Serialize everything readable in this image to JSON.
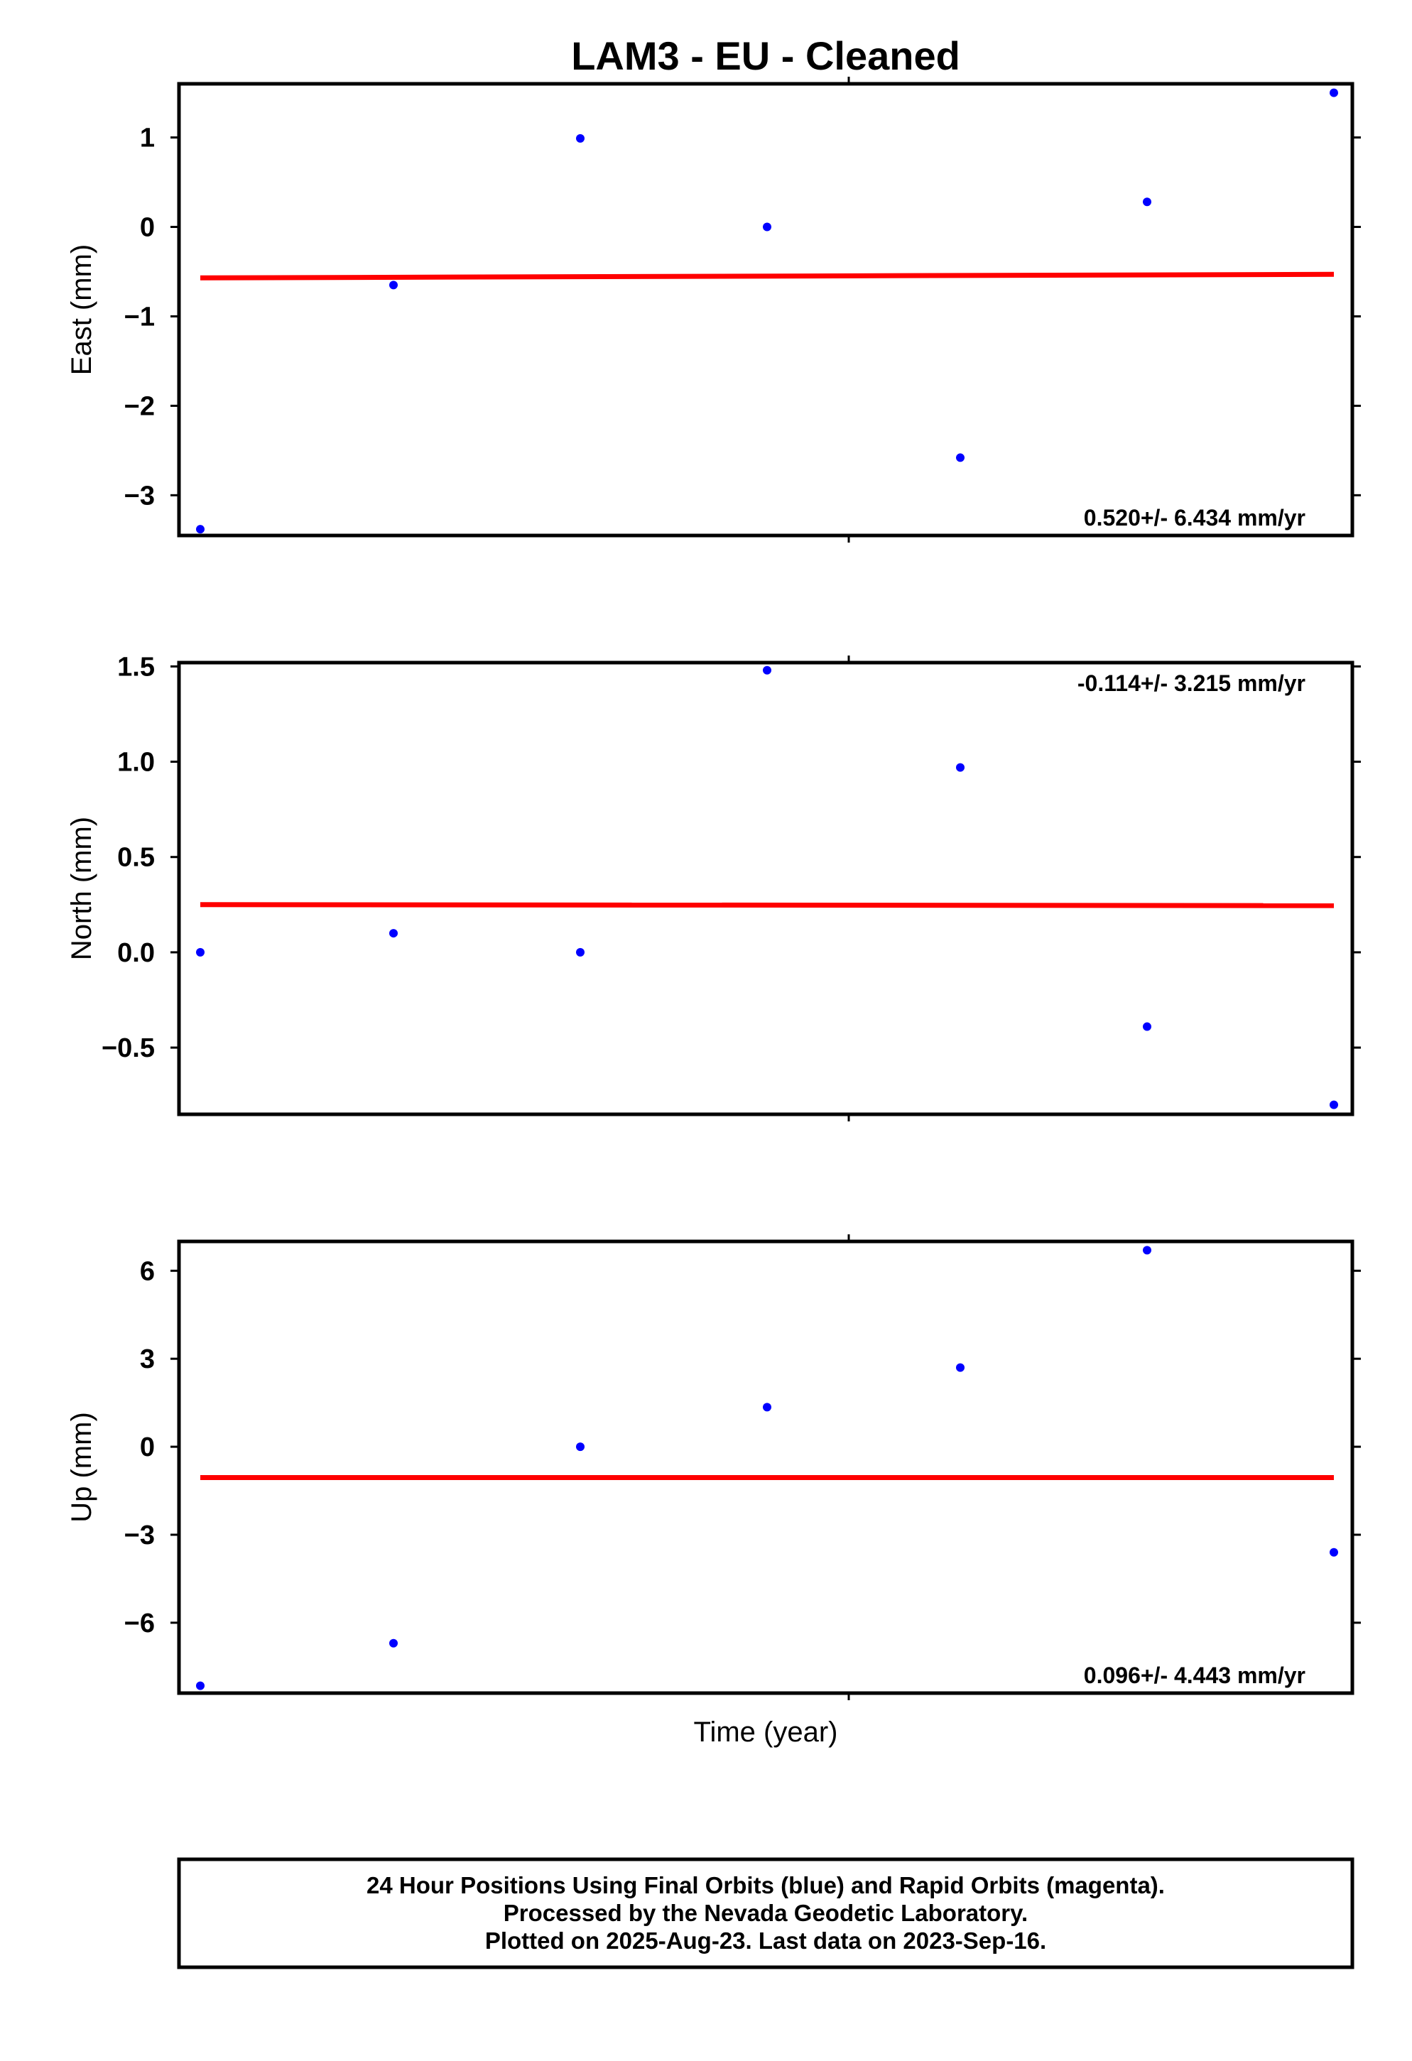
{
  "title": "LAM3  - EU - Cleaned",
  "xlabel": "Time (year)",
  "footer": {
    "line1": "24 Hour Positions Using Final Orbits (blue) and Rapid Orbits (magenta).",
    "line2": "Processed by the Nevada Geodetic Laboratory.",
    "line3": "Plotted on 2025-Aug-23. Last data on 2023-Sep-16."
  },
  "colors": {
    "points": "#0000ff",
    "trend": "#ff0000",
    "frame": "#000000"
  },
  "chart_data": [
    {
      "type": "scatter",
      "ylabel": "East (mm)",
      "ylim": [
        -3.45,
        1.6
      ],
      "yticks": [
        -3,
        -2,
        -1,
        0,
        1
      ],
      "ytick_labels": [
        "−3",
        "−2",
        "−1",
        "0",
        "1"
      ],
      "rate_label": "0.520+/- 6.434 mm/yr",
      "rate_position": "bottom-right",
      "points": [
        -3.38,
        -0.65,
        0.99,
        0.0,
        -2.58,
        0.28,
        1.5
      ],
      "trend": [
        -0.57,
        -0.53
      ]
    },
    {
      "type": "scatter",
      "ylabel": "North (mm)",
      "ylim": [
        -0.85,
        1.52
      ],
      "yticks": [
        -0.5,
        0.0,
        0.5,
        1.0,
        1.5
      ],
      "ytick_labels": [
        "−0.5",
        "0.0",
        "0.5",
        "1.0",
        "1.5"
      ],
      "rate_label": "-0.114+/- 3.215 mm/yr",
      "rate_position": "top-right",
      "points": [
        0.0,
        0.1,
        0.0,
        1.48,
        0.97,
        -0.39,
        -0.8
      ],
      "trend": [
        0.25,
        0.245
      ]
    },
    {
      "type": "scatter",
      "ylabel": "Up (mm)",
      "ylim": [
        -8.4,
        7.0
      ],
      "yticks": [
        -6,
        -3,
        0,
        3,
        6
      ],
      "ytick_labels": [
        "−6",
        "−3",
        "0",
        "3",
        "6"
      ],
      "rate_label": "0.096+/- 4.443 mm/yr",
      "rate_position": "bottom-right",
      "points": [
        -8.15,
        -6.7,
        0.0,
        1.35,
        2.7,
        6.7,
        -3.6
      ],
      "trend": [
        -1.05,
        -1.05
      ]
    }
  ]
}
